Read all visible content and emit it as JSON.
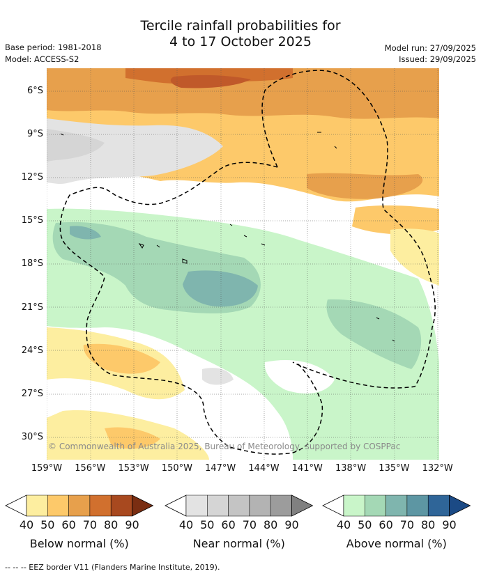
{
  "title": {
    "line1": "Tercile rainfall probabilities for",
    "line2": "4 to 17 October 2025"
  },
  "header_left": {
    "base_period": "Base period: 1981-2018",
    "model": "Model: ACCESS-S2"
  },
  "header_right": {
    "model_run": "Model run: 27/09/2025",
    "issued": "Issued: 29/09/2025"
  },
  "map": {
    "lat_labels": [
      "6°S",
      "9°S",
      "12°S",
      "15°S",
      "18°S",
      "21°S",
      "24°S",
      "27°S",
      "30°S"
    ],
    "lon_labels": [
      "159°W",
      "156°W",
      "153°W",
      "150°W",
      "147°W",
      "144°W",
      "141°W",
      "138°W",
      "135°W",
      "132°W"
    ],
    "copyright": "© Commonwealth of Australia 2025, Bureau of Meteorology, supported by COSPPac"
  },
  "colorbars": [
    {
      "label": "Below normal (%)",
      "ticks": [
        "40",
        "50",
        "60",
        "70",
        "80",
        "90"
      ],
      "colors": [
        "#fdeea0",
        "#fdc96a",
        "#e7a04c",
        "#d1702e",
        "#a8491f",
        "#7a2e12"
      ]
    },
    {
      "label": "Near normal (%)",
      "ticks": [
        "40",
        "50",
        "60",
        "70",
        "80",
        "90"
      ],
      "colors": [
        "#e3e3e3",
        "#d5d5d5",
        "#c4c4c4",
        "#b3b3b3",
        "#9c9c9c",
        "#808080"
      ]
    },
    {
      "label": "Above normal (%)",
      "ticks": [
        "40",
        "50",
        "60",
        "70",
        "80",
        "90"
      ],
      "colors": [
        "#c9f5c9",
        "#a4d8b5",
        "#7fb5ae",
        "#5d96a3",
        "#2f6598",
        "#1b4a85"
      ]
    }
  ],
  "legend_footnote": "-- -- -- EEZ border V11 (Flanders Marine Institute, 2019)."
}
